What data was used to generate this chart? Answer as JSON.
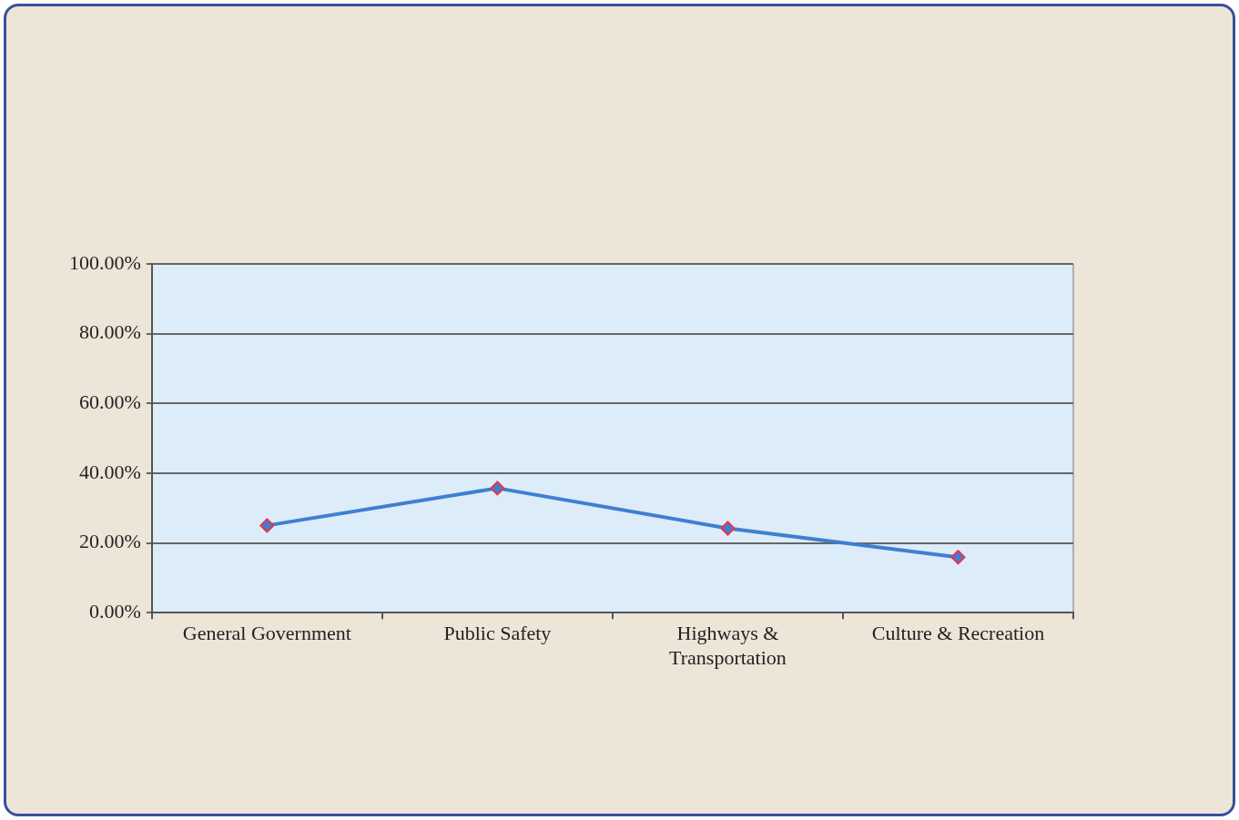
{
  "chart_data": {
    "type": "line",
    "categories": [
      "General Government",
      "Public Safety",
      "Highways & Transportation",
      "Culture & Recreation"
    ],
    "series": [
      {
        "color": "#3f7fcf",
        "values": [
          25.0,
          35.7,
          24.2,
          15.9
        ]
      }
    ],
    "ylim": [
      0,
      100
    ],
    "yticks": [
      {
        "value": 0,
        "label": "0.00%"
      },
      {
        "value": 20,
        "label": "20.00%"
      },
      {
        "value": 40,
        "label": "40.00%"
      },
      {
        "value": 60,
        "label": "60.00%"
      },
      {
        "value": 80,
        "label": "80.00%"
      },
      {
        "value": 100,
        "label": "100.00%"
      }
    ],
    "grid": "y",
    "legend": false,
    "marker": "diamond",
    "line_style": "solid"
  }
}
